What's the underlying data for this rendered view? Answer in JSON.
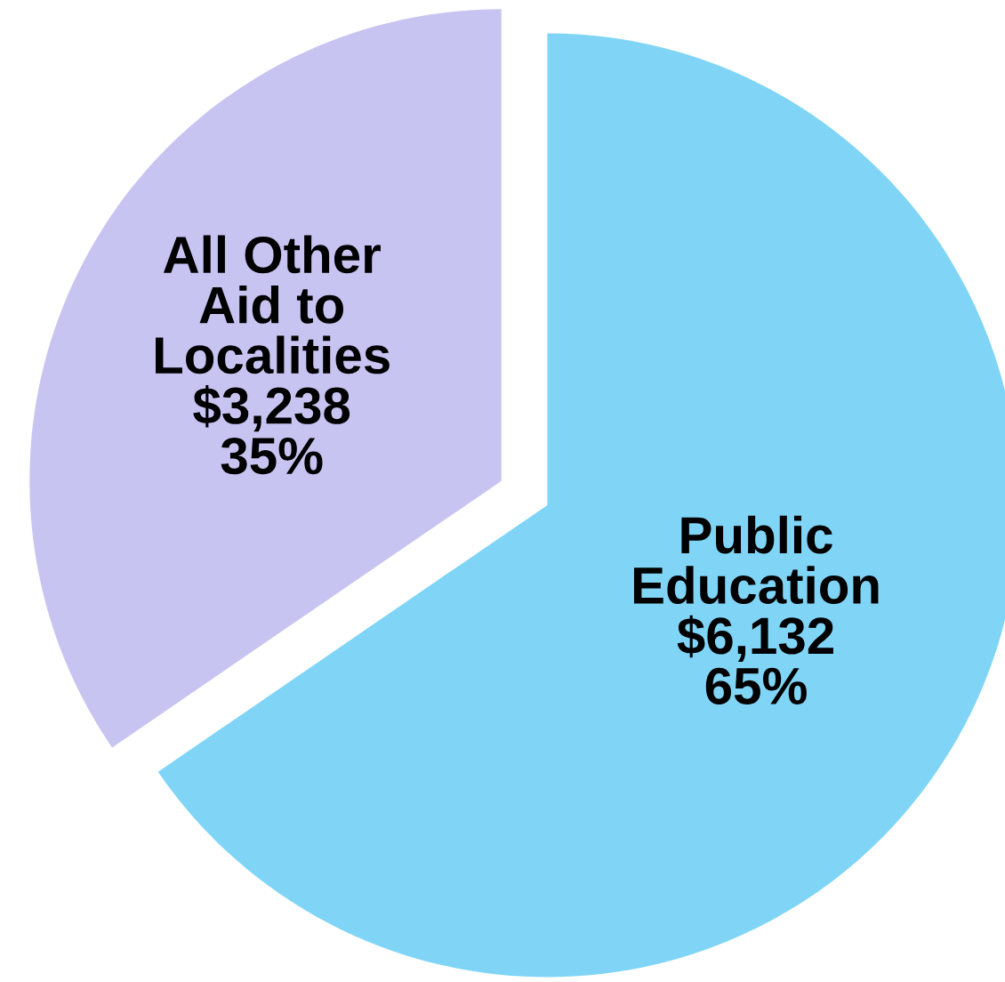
{
  "chart_data": {
    "type": "pie",
    "categories": [
      "Public\nEducation",
      "All Other\nAid to\nLocalities"
    ],
    "values": [
      6132,
      3238
    ],
    "colors": [
      "#80d5f7",
      "#c8c4f2"
    ],
    "value_labels": [
      "$6,132\n65%",
      "$3,238\n35%"
    ],
    "legend": false
  }
}
